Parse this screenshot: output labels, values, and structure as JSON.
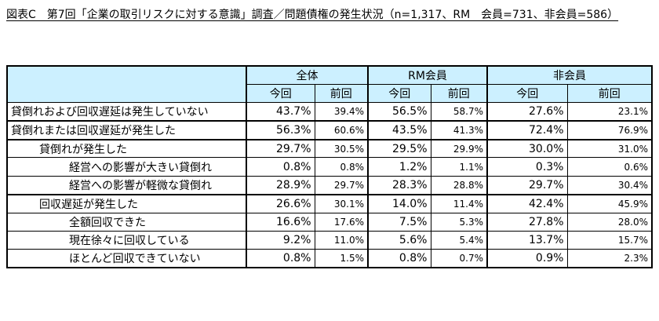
{
  "title": "図表C　第7回「企業の取引リスクに対する意識」調査／問題債権の発生状況（n=1,317、RM　会員=731、非会員=586）",
  "table": {
    "groups": [
      "全体",
      "RM会員",
      "非会員"
    ],
    "subheaders": [
      "今回",
      "前回",
      "今回",
      "前回",
      "今回",
      "前回"
    ],
    "rows": [
      [
        "貸倒れおよび回収遅延は発生していない",
        "43.7%",
        "39.4%",
        "56.5%",
        "58.7%",
        "27.6%",
        "23.1%"
      ],
      [
        "貸倒れまたは回収遅延が発生した",
        "56.3%",
        "60.6%",
        "43.5%",
        "41.3%",
        "72.4%",
        "76.9%"
      ],
      [
        "貸倒れが発生した",
        "29.7%",
        "30.5%",
        "29.5%",
        "29.9%",
        "30.0%",
        "31.0%"
      ],
      [
        "経営への影響が大きい貸倒れ",
        "0.8%",
        "0.8%",
        "1.2%",
        "1.1%",
        "0.3%",
        "0.6%"
      ],
      [
        "経営への影響が軽微な貸倒れ",
        "28.9%",
        "29.7%",
        "28.3%",
        "28.8%",
        "29.7%",
        "30.4%"
      ],
      [
        "回収遅延が発生した",
        "26.6%",
        "30.1%",
        "14.0%",
        "11.4%",
        "42.4%",
        "45.9%"
      ],
      [
        "全額回収できた",
        "16.6%",
        "17.6%",
        "7.5%",
        "5.3%",
        "27.8%",
        "28.0%"
      ],
      [
        "現在徐々に回収している",
        "9.2%",
        "11.0%",
        "5.6%",
        "5.4%",
        "13.7%",
        "15.7%"
      ],
      [
        "ほとんど回収できていない",
        "0.8%",
        "1.5%",
        "0.8%",
        "0.7%",
        "0.9%",
        "2.3%"
      ]
    ]
  }
}
